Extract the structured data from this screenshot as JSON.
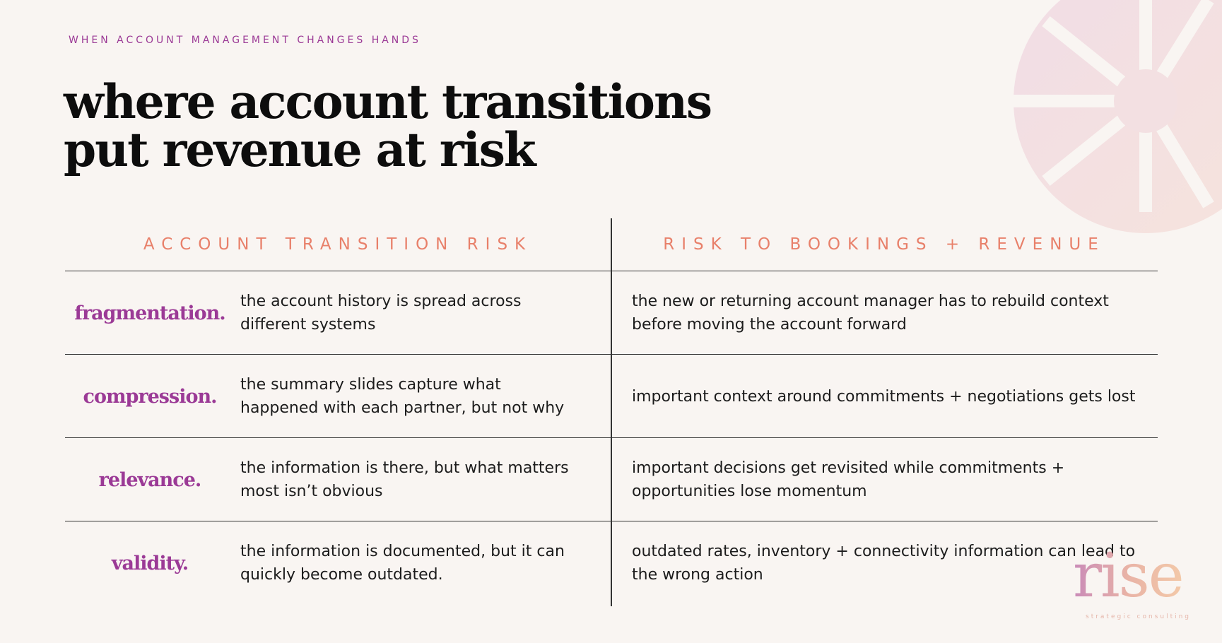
{
  "header": {
    "eyebrow": "WHEN ACCOUNT MANAGEMENT CHANGES HANDS",
    "title_lines": [
      "where account transitions",
      "put revenue at risk"
    ]
  },
  "table": {
    "headers": [
      "ACCOUNT TRANSITION RISK",
      "RISK TO BOOKINGS + REVENUE"
    ],
    "rows": [
      [
        "fragmentation.",
        "the account history is spread across different systems",
        "the new or returning account manager has to rebuild context before moving the account forward"
      ],
      [
        "compression.",
        "the summary slides capture what happened with each partner, but not why",
        "important context around commitments + negotiations gets lost"
      ],
      [
        "relevance.",
        "the information is there, but what matters most isn’t obvious",
        "important decisions get revisited while commitments + opportunities lose momentum"
      ],
      [
        "validity.",
        "the information is documented, but it can quickly become outdated.",
        "outdated rates, inventory + connectivity information can lead to the wrong action"
      ]
    ]
  },
  "logo": {
    "name": "rise",
    "tagline": "strategic consulting"
  }
}
